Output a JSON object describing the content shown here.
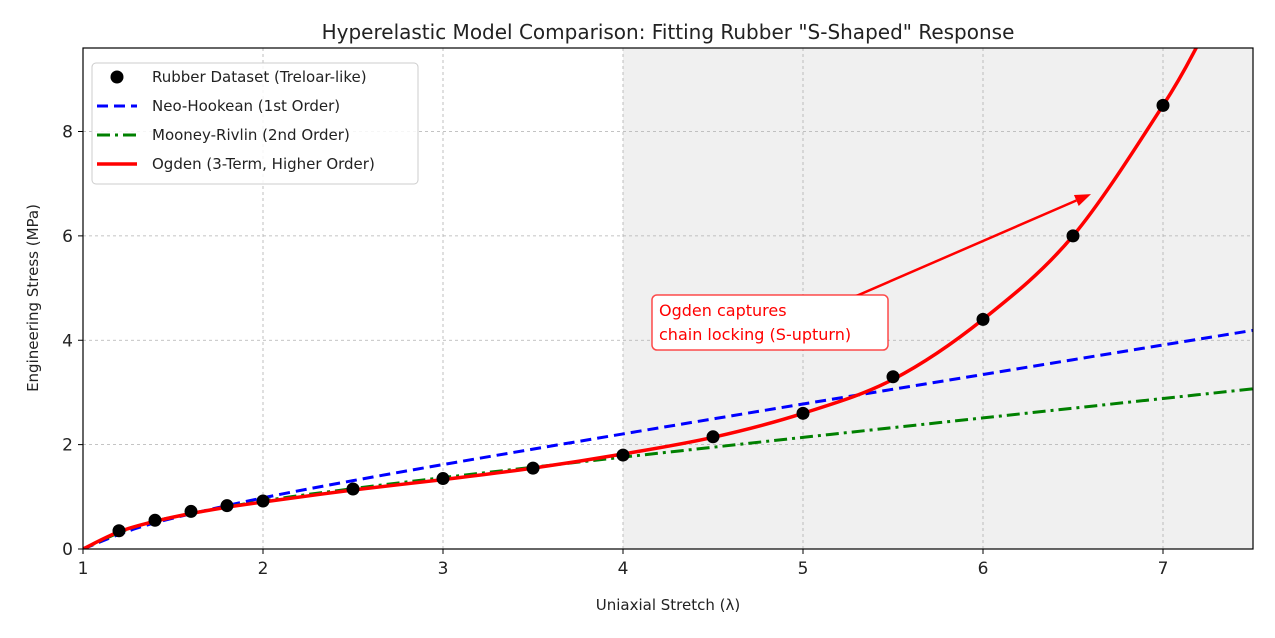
{
  "chart_data": {
    "type": "line",
    "title": "Hyperelastic Model Comparison: Fitting Rubber \"S-Shaped\" Response",
    "xlabel": "Uniaxial Stretch (λ)",
    "ylabel": "Engineering Stress (MPa)",
    "xlim": [
      1,
      7.5
    ],
    "ylim": [
      0,
      9.6
    ],
    "xticks": [
      "1",
      "2",
      "3",
      "4",
      "5",
      "6",
      "7"
    ],
    "yticks": [
      "0",
      "2",
      "4",
      "6",
      "8"
    ],
    "grid": true,
    "legend_position": "top-left",
    "shaded_region": {
      "x_from": 4,
      "x_to": 7.5,
      "color": "#f0f0f0"
    },
    "series": [
      {
        "name": "Rubber Dataset (Treloar-like)",
        "kind": "scatter",
        "color": "#000000",
        "x": [
          1.2,
          1.4,
          1.6,
          1.8,
          2,
          2.5,
          3,
          3.5,
          4,
          4.5,
          5,
          5.5,
          6,
          6.5,
          7
        ],
        "y": [
          0.35,
          0.55,
          0.72,
          0.83,
          0.92,
          1.15,
          1.35,
          1.55,
          1.8,
          2.15,
          2.6,
          3.3,
          4.4,
          6.0,
          8.5
        ]
      },
      {
        "name": "Neo-Hookean (1st Order)",
        "kind": "dashed",
        "color": "#0000ff",
        "x": [
          1,
          1.25,
          1.5,
          2,
          2.5,
          3,
          3.5,
          4,
          4.5,
          5,
          5.5,
          6,
          6.5,
          7,
          7.5
        ],
        "y": [
          0,
          0.342,
          0.591,
          0.98,
          1.31,
          1.618,
          1.914,
          2.205,
          2.493,
          2.778,
          3.061,
          3.344,
          3.627,
          3.909,
          4.19
        ]
      },
      {
        "name": "Mooney-Rivlin (2nd Order)",
        "kind": "dashdot",
        "color": "#008000",
        "x": [
          1,
          1.25,
          1.5,
          2,
          2.5,
          3,
          3.5,
          4,
          4.5,
          5,
          5.5,
          6,
          6.5,
          7,
          7.5
        ],
        "y": [
          0,
          0.379,
          0.611,
          0.921,
          1.157,
          1.368,
          1.566,
          1.76,
          1.95,
          2.139,
          2.326,
          2.512,
          2.698,
          2.884,
          3.069
        ]
      },
      {
        "name": "Ogden (3-Term, Higher Order)",
        "kind": "solid",
        "color": "#ff0000",
        "x": [
          1,
          1.2,
          1.4,
          1.6,
          1.8,
          2,
          2.5,
          3,
          3.5,
          4,
          4.5,
          5,
          5.5,
          6,
          6.5,
          7,
          7.2
        ],
        "y": [
          0,
          0.33,
          0.53,
          0.68,
          0.8,
          0.9,
          1.13,
          1.33,
          1.55,
          1.82,
          2.14,
          2.6,
          3.25,
          4.4,
          6.0,
          8.5,
          9.7
        ]
      }
    ],
    "annotation": {
      "text_lines": [
        "Ogden captures",
        "chain locking (S-upturn)"
      ],
      "color": "#ff0000",
      "xy": [
        6.6,
        6.8
      ],
      "xytext": [
        5.19,
        4.69
      ]
    }
  }
}
